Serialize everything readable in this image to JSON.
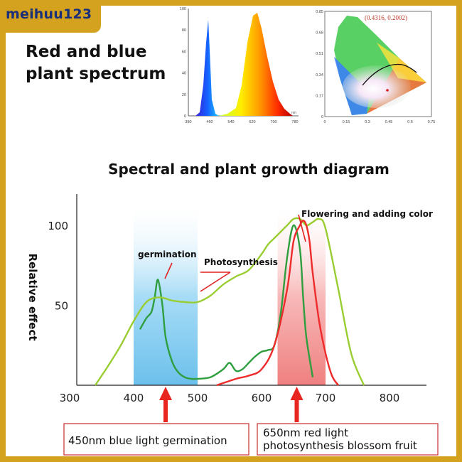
{
  "watermark": "meihuu123",
  "header": {
    "title_line1": "Red and blue",
    "title_line2": "plant spectrum"
  },
  "spectrum_inset": {
    "y_ticks": [
      "100",
      "80",
      "60",
      "40",
      "20",
      "0"
    ],
    "x_ticks": [
      "380",
      "460",
      "540",
      "620",
      "700",
      "780"
    ],
    "x_unit": "nm"
  },
  "cie_inset": {
    "coordinate_label": "(0.4316, 0.2002)",
    "y_ticks": [
      "0.85",
      "0.68",
      "0.51",
      "0.34",
      "0.17",
      "0"
    ],
    "x_ticks": [
      "0",
      "0.15",
      "0.3",
      "0.45",
      "0.6",
      "0.75"
    ]
  },
  "chart_data": {
    "type": "line",
    "title": "Spectral and plant growth diagram",
    "ylabel": "Relative effect",
    "xlabel": "",
    "xlim": [
      300,
      900
    ],
    "ylim": [
      0,
      110
    ],
    "x_ticks": [
      300,
      400,
      500,
      600,
      700,
      800
    ],
    "y_ticks": [
      50,
      100
    ],
    "bands": [
      {
        "from": 400,
        "to": 500,
        "color": "#7ec8ee"
      },
      {
        "from": 625,
        "to": 700,
        "color": "#f08a8a"
      }
    ],
    "series": [
      {
        "name": "germination",
        "color": "#2f9e3f",
        "x": [
          410,
          420,
          428,
          433,
          438,
          445,
          450,
          460,
          470,
          480,
          490,
          500,
          520,
          540,
          550,
          560,
          570,
          580,
          590,
          600,
          610,
          620,
          630,
          640,
          650,
          660,
          665,
          670,
          680
        ],
        "y": [
          35,
          42,
          46,
          55,
          66,
          50,
          30,
          15,
          8,
          5,
          4,
          4,
          5,
          10,
          14,
          9,
          10,
          14,
          18,
          21,
          22,
          25,
          45,
          80,
          100,
          85,
          55,
          30,
          5
        ]
      },
      {
        "name": "Photosynthesis",
        "color": "#9acd32",
        "x": [
          340,
          360,
          380,
          400,
          420,
          440,
          460,
          480,
          500,
          520,
          540,
          560,
          580,
          600,
          610,
          620,
          640,
          650,
          660,
          670,
          680,
          690,
          700,
          720,
          740,
          760
        ],
        "y": [
          0,
          12,
          25,
          40,
          52,
          55,
          53,
          52,
          52,
          56,
          63,
          68,
          72,
          82,
          88,
          92,
          100,
          104,
          104,
          100,
          102,
          104,
          98,
          60,
          20,
          0
        ]
      },
      {
        "name": "Flowering and adding color",
        "color": "#ee2b2b",
        "x": [
          530,
          560,
          580,
          600,
          620,
          640,
          650,
          660,
          665,
          670,
          675,
          680,
          690,
          700,
          710,
          720
        ],
        "y": [
          0,
          4,
          6,
          10,
          25,
          60,
          90,
          100,
          103,
          100,
          90,
          70,
          40,
          20,
          6,
          0
        ]
      }
    ],
    "annotations": [
      {
        "text": "germination"
      },
      {
        "text": "Photosynthesis"
      },
      {
        "text": "Flowering and adding color"
      }
    ],
    "callouts": [
      {
        "text": "450nm blue light germination",
        "x": 450
      },
      {
        "text": "650nm red light photosynthesis blossom fruit",
        "x": 655
      }
    ]
  }
}
